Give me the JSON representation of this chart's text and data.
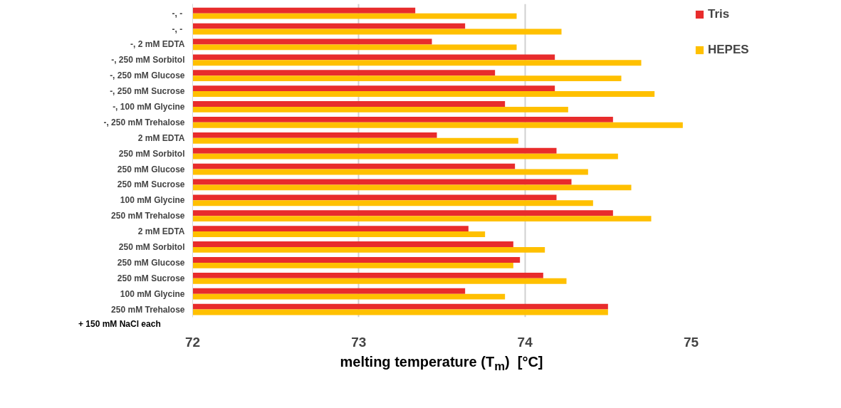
{
  "chart_data": {
    "type": "bar",
    "orientation": "horizontal",
    "categories": [
      "-,  -",
      "-,  -",
      "-, 2 mM EDTA",
      "-, 250 mM Sorbitol",
      "-, 250 mM Glucose",
      "-, 250 mM Sucrose",
      "-, 100 mM Glycine",
      "-, 250 mM Trehalose",
      "2 mM EDTA",
      "250 mM Sorbitol",
      "250 mM Glucose",
      "250 mM Sucrose",
      "100 mM Glycine",
      "250 mM Trehalose",
      "2 mM EDTA",
      "250 mM Sorbitol",
      "250 mM Glucose",
      "250 mM Sucrose",
      "100 mM Glycine",
      "250 mM Trehalose"
    ],
    "series": [
      {
        "name": "Tris",
        "color": "#e82c2c",
        "values": [
          73.34,
          73.64,
          73.44,
          74.18,
          73.82,
          74.18,
          73.88,
          74.53,
          73.47,
          74.19,
          73.94,
          74.28,
          74.19,
          74.53,
          73.66,
          73.93,
          73.97,
          74.11,
          73.64,
          74.5
        ]
      },
      {
        "name": "HEPES",
        "color": "#ffc000",
        "values": [
          73.95,
          74.22,
          73.95,
          74.7,
          74.58,
          74.78,
          74.26,
          74.95,
          73.96,
          74.56,
          74.38,
          74.64,
          74.41,
          74.76,
          73.76,
          74.12,
          73.93,
          74.25,
          73.88,
          74.5
        ]
      }
    ],
    "xlim": [
      72,
      75
    ],
    "xticks": [
      72,
      73,
      74,
      75
    ],
    "xlabel": "melting temperature (T$_{m}$)  [°C]",
    "annotations": [
      "+ 150 mM NaCl each"
    ],
    "grid": "x",
    "legend": "top right"
  }
}
